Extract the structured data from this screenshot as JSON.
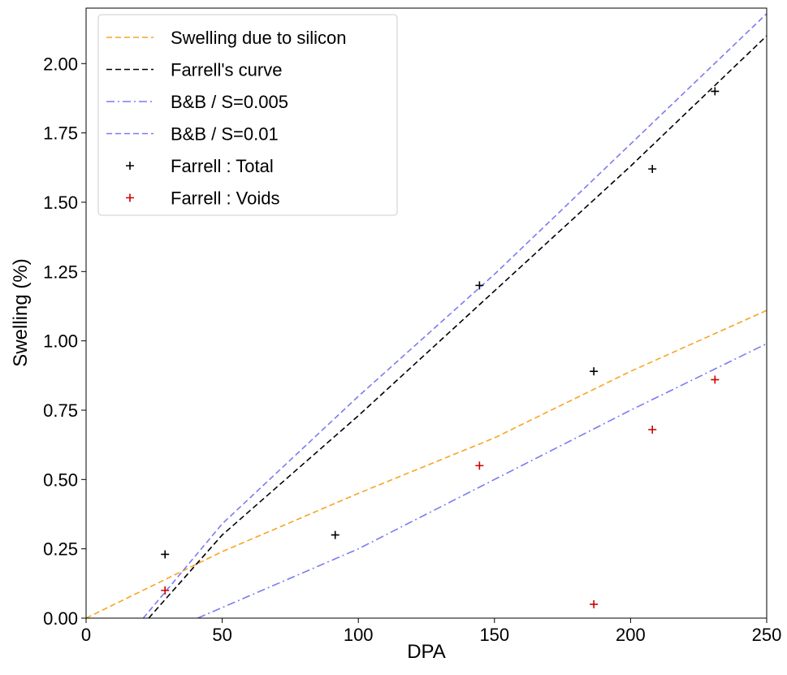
{
  "chart_data": {
    "type": "line",
    "title": "",
    "xlabel": "DPA",
    "ylabel": "Swelling (%)",
    "xlim": [
      0,
      250
    ],
    "ylim": [
      0,
      2.2
    ],
    "xticks": [
      0,
      50,
      100,
      150,
      200,
      250
    ],
    "yticks": [
      0.0,
      0.25,
      0.5,
      0.75,
      1.0,
      1.25,
      1.5,
      1.75,
      2.0
    ],
    "ytick_labels": [
      "0.00",
      "0.25",
      "0.50",
      "0.75",
      "1.00",
      "1.25",
      "1.50",
      "1.75",
      "2.00"
    ],
    "grid": false,
    "legend_position": "top-left",
    "series": [
      {
        "name": "Swelling due to silicon",
        "kind": "line",
        "style": "dashed",
        "color": "#f5a623",
        "x": [
          0,
          50,
          100,
          150,
          200,
          250
        ],
        "y": [
          0.0,
          0.24,
          0.45,
          0.65,
          0.89,
          1.11
        ]
      },
      {
        "name": "Farrell's curve",
        "kind": "line",
        "style": "dashed",
        "color": "#000000",
        "x": [
          23,
          50,
          100,
          150,
          200,
          250
        ],
        "y": [
          0.0,
          0.3,
          0.73,
          1.18,
          1.63,
          2.1
        ]
      },
      {
        "name": "B&B / S=0.005",
        "kind": "line",
        "style": "dashdot",
        "color": "#7b7bf2",
        "x": [
          41,
          100,
          150,
          200,
          250
        ],
        "y": [
          0.0,
          0.25,
          0.5,
          0.75,
          0.99
        ]
      },
      {
        "name": "B&B / S=0.01",
        "kind": "line",
        "style": "dashed",
        "color": "#7b7bf2",
        "x": [
          21,
          50,
          100,
          150,
          200,
          250
        ],
        "y": [
          0.0,
          0.34,
          0.8,
          1.24,
          1.71,
          2.18
        ]
      },
      {
        "name": "Farrell : Total",
        "kind": "scatter",
        "marker": "+",
        "color": "#000000",
        "x": [
          29,
          91.5,
          144.5,
          186.5,
          208,
          231
        ],
        "y": [
          0.23,
          0.3,
          1.2,
          0.89,
          1.62,
          1.9
        ]
      },
      {
        "name": "Farrell : Voids",
        "kind": "scatter",
        "marker": "+",
        "color": "#cc0000",
        "x": [
          29,
          144.5,
          186.5,
          208,
          231
        ],
        "y": [
          0.1,
          0.55,
          0.05,
          0.68,
          0.86
        ]
      }
    ]
  }
}
